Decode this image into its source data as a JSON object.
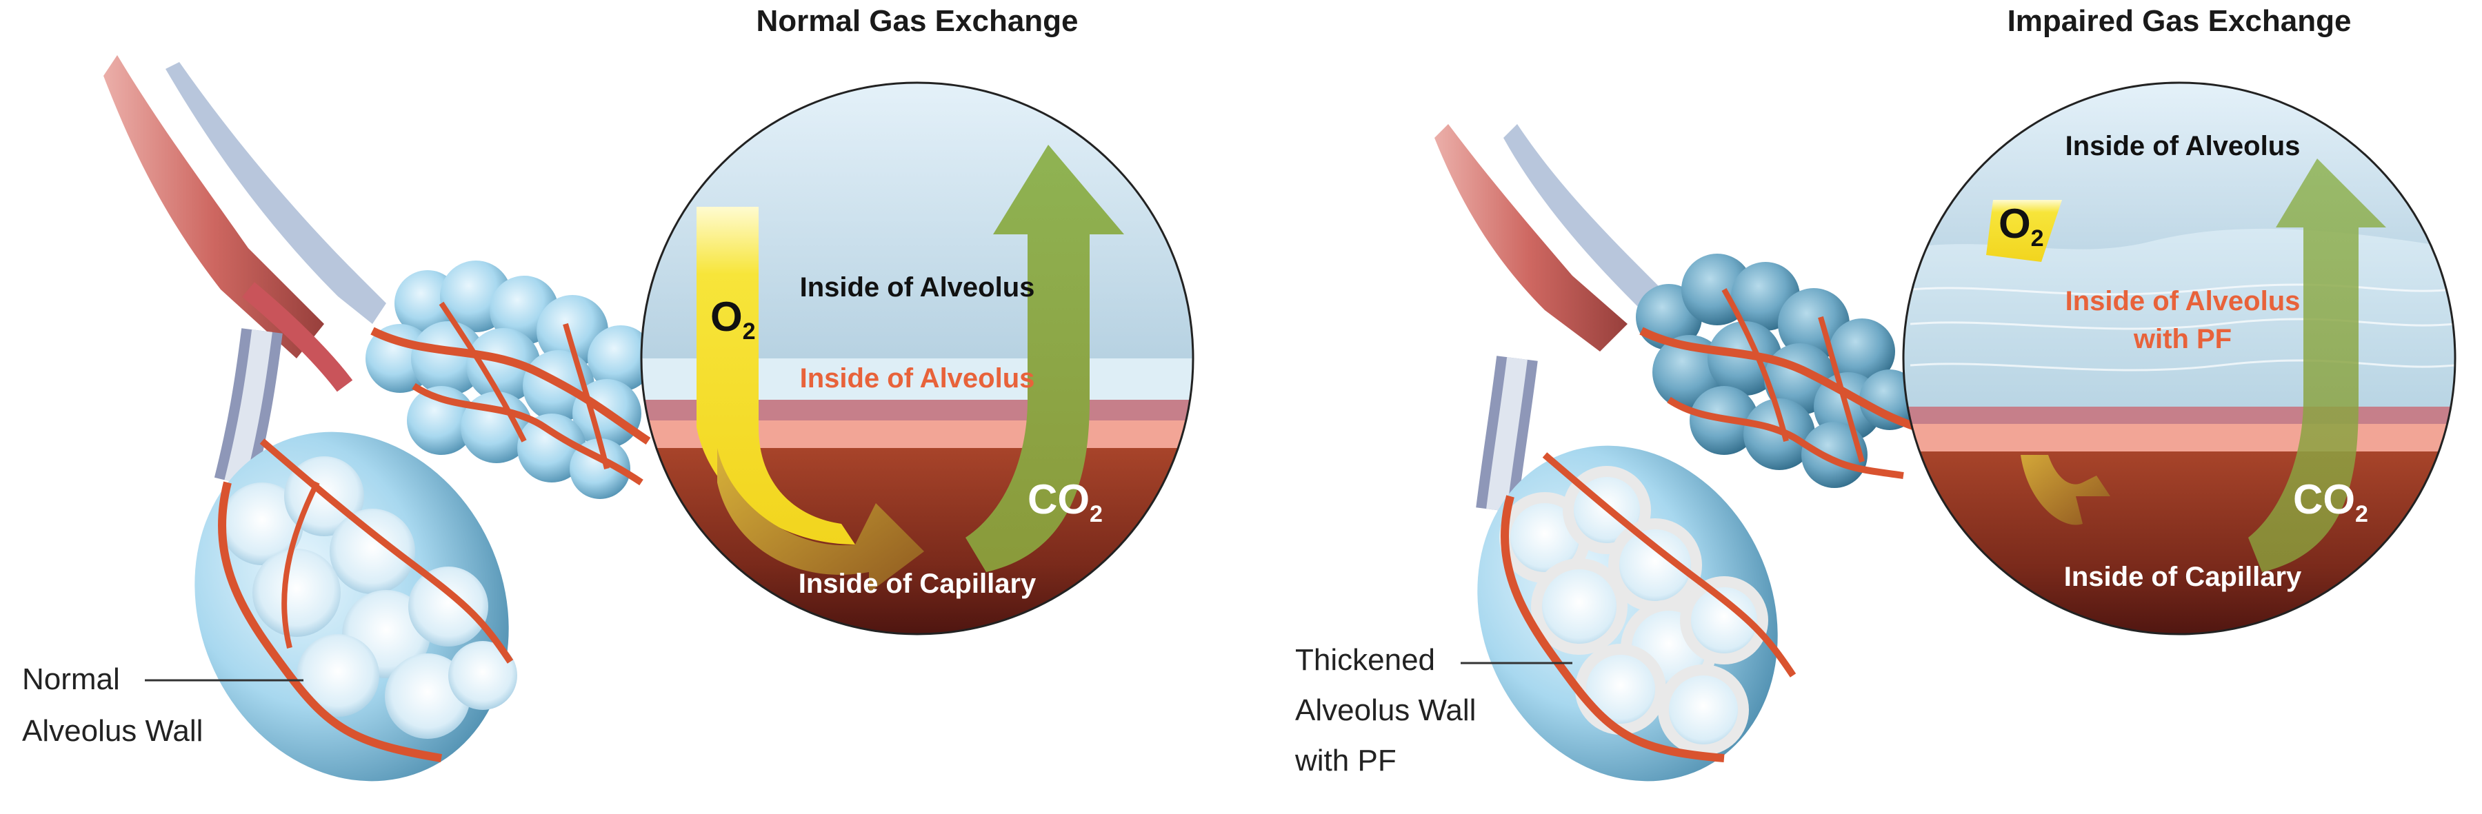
{
  "left_panel": {
    "title": "Normal Gas Exchange",
    "circle": {
      "inside_alveolus_top": "Inside of Alveolus",
      "inside_alveolus_band": "Inside of Alveolus",
      "inside_capillary": "Inside of Capillary",
      "o2": {
        "main": "O",
        "sub": "2"
      },
      "co2": {
        "main": "CO",
        "sub": "2"
      }
    },
    "callout": {
      "line1": "Normal",
      "line2": "Alveolus Wall"
    }
  },
  "right_panel": {
    "title": "Impaired Gas Exchange",
    "circle": {
      "inside_alveolus_top": "Inside of Alveolus",
      "inside_alveolus_pf_line1": "Inside of Alveolus",
      "inside_alveolus_pf_line2": "with PF",
      "inside_capillary": "Inside of Capillary",
      "o2": {
        "main": "O",
        "sub": "2"
      },
      "co2": {
        "main": "CO",
        "sub": "2"
      }
    },
    "callout": {
      "line1": "Thickened",
      "line2": "Alveolus Wall",
      "line3": "with PF"
    }
  },
  "colors": {
    "alveolus_blue": "#8ec9e6",
    "alveolus_dark": "#4f8fb0",
    "capillary_red": "#d9532f",
    "capillary_dark": "#5e1a14",
    "o2_yellow": "#f7e53a",
    "co2_green": "#8aa84a",
    "alveolus_text_orange": "#e8623a",
    "band_pink": "#f2a596"
  }
}
